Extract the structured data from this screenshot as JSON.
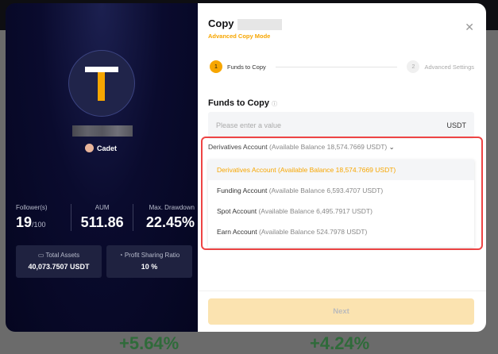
{
  "background": {
    "fragments": [
      "+5.64%",
      "+4.24%"
    ]
  },
  "trader": {
    "badge": "Cadet",
    "stats": [
      {
        "label": "Follower(s)",
        "value": "19",
        "sub": "/100"
      },
      {
        "label": "AUM",
        "value": "511.86"
      },
      {
        "label": "Max. Drawdown",
        "value": "22.45%"
      }
    ],
    "cards": [
      {
        "label": "Total Assets",
        "value": "40,073.7507 USDT",
        "icon": "wallet-icon"
      },
      {
        "label": "Profit Sharing Ratio",
        "value": "10 %",
        "icon": "pie-chart-icon"
      }
    ]
  },
  "dialog": {
    "title": "Copy",
    "mode": "Advanced Copy Mode",
    "steps": [
      {
        "num": "1",
        "label": "Funds to Copy"
      },
      {
        "num": "2",
        "label": "Advanced Settings"
      }
    ],
    "funds_title": "Funds to Copy",
    "input_placeholder": "Please enter a value",
    "input_unit": "USDT",
    "selected_account": {
      "name": "Derivatives Account",
      "balance": "(Available Balance 18,574.7669 USDT)"
    },
    "options": [
      {
        "name": "Derivatives Account",
        "balance": "(Available Balance 18,574.7669 USDT)"
      },
      {
        "name": "Funding Account",
        "balance": "(Available Balance 6,593.4707 USDT)"
      },
      {
        "name": "Spot Account",
        "balance": "(Available Balance 6,495.7917 USDT)"
      },
      {
        "name": "Earn Account",
        "balance": "(Available Balance 524.7978 USDT)"
      }
    ],
    "next_label": "Next"
  },
  "colors": {
    "accent": "#f7a600",
    "highlight": "#ee4444",
    "panel": "#0a0b2e"
  }
}
